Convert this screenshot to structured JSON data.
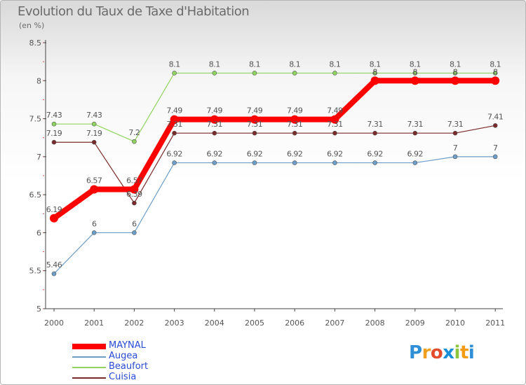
{
  "header": {
    "title": "Evolution du Taux de Taxe d'Habitation",
    "unit": "(en %)"
  },
  "logo": {
    "text": "Proxiti",
    "letters": [
      {
        "char": "P",
        "color": "#2e8fd6"
      },
      {
        "char": "r",
        "color": "#f0a020"
      },
      {
        "char": "o",
        "color": "#e24b2b"
      },
      {
        "char": "x",
        "color": "#1a8fd9"
      },
      {
        "char": "i",
        "color": "#8cc63f"
      },
      {
        "char": "t",
        "color": "#f39c12"
      },
      {
        "char": "i",
        "color": "#2e8fd6"
      }
    ]
  },
  "chart_data": {
    "type": "line",
    "title": "Evolution du Taux de Taxe d'Habitation",
    "ylabel": "(en %)",
    "xlabel": "",
    "categories": [
      "2000",
      "2001",
      "2002",
      "2003",
      "2004",
      "2005",
      "2006",
      "2007",
      "2008",
      "2009",
      "2010",
      "2011"
    ],
    "ylim": [
      5,
      8.5
    ],
    "yticks": [
      "5",
      "5.5",
      "6",
      "6.5",
      "7",
      "7.5",
      "8",
      "8.5"
    ],
    "grid": false,
    "series": [
      {
        "name": "MAYNAL",
        "color": "#ff0000",
        "values": [
          6.19,
          6.57,
          6.57,
          7.49,
          7.49,
          7.49,
          7.49,
          7.49,
          8,
          8,
          8,
          8
        ],
        "labels": [
          "6.19",
          "6.57",
          "6.57",
          "7.49",
          "7.49",
          "7.49",
          "7.49",
          "7.49",
          "8",
          "8",
          "8",
          "8"
        ]
      },
      {
        "name": "Augea",
        "color": "#6d9ec8",
        "values": [
          5.46,
          6,
          6,
          6.92,
          6.92,
          6.92,
          6.92,
          6.92,
          6.92,
          6.92,
          7,
          7
        ],
        "labels": [
          "5.46",
          "6",
          "6",
          "6.92",
          "6.92",
          "6.92",
          "6.92",
          "6.92",
          "6.92",
          "6.92",
          "7",
          "7"
        ]
      },
      {
        "name": "Beaufort",
        "color": "#8fd45f",
        "values": [
          7.43,
          7.43,
          7.2,
          8.1,
          8.1,
          8.1,
          8.1,
          8.1,
          8.1,
          8.1,
          8.1,
          8.1
        ],
        "labels": [
          "7.43",
          "7.43",
          "7.2",
          "8.1",
          "8.1",
          "8.1",
          "8.1",
          "8.1",
          "8.1",
          "8.1",
          "8.1",
          "8.1"
        ]
      },
      {
        "name": "Cuisia",
        "color": "#7a2a2a",
        "values": [
          7.19,
          7.19,
          6.39,
          7.31,
          7.31,
          7.31,
          7.31,
          7.31,
          7.31,
          7.31,
          7.31,
          7.41
        ],
        "labels": [
          "7.19",
          "7.19",
          "6.39",
          "7.31",
          "7.31",
          "7.31",
          "7.31",
          "7.31",
          "7.31",
          "7.31",
          "7.31",
          "7.41"
        ]
      }
    ],
    "legend_position": "bottom-left"
  }
}
